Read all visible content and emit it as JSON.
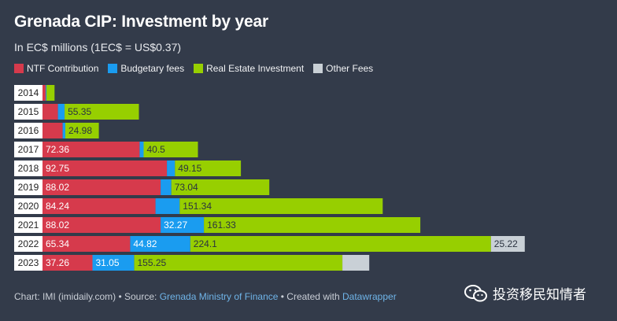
{
  "title": "Grenada CIP: Investment by year",
  "subtitle": "In EC$ millions (1EC$ = US$0.37)",
  "footer": {
    "chart_credit": "Chart: IMI (imidaily.com) • Source: ",
    "source_name": "Grenada Ministry of Finance",
    "created_with": " • Created with ",
    "tool_name": "Datawrapper"
  },
  "watermark": {
    "text": "投资移民知情者",
    "icon": "wechat-icon"
  },
  "colors": {
    "background": "#333b4a",
    "NTF Contribution": "#d63a4c",
    "Budgetary fees": "#1a9cf0",
    "Real Estate Investment": "#97cf00",
    "Other Fees": "#c9d0d6",
    "year_band": "#ffffff"
  },
  "chart_data": {
    "type": "bar",
    "orientation": "horizontal",
    "stacked": true,
    "title": "Grenada CIP: Investment by year",
    "subtitle": "In EC$ millions (1EC$ = US$0.37)",
    "legend_position": "top-left",
    "categories": [
      "2014",
      "2015",
      "2016",
      "2017",
      "2018",
      "2019",
      "2020",
      "2021",
      "2022",
      "2023"
    ],
    "series": [
      {
        "name": "NTF Contribution",
        "values": [
          2.4,
          11.5,
          15.0,
          72.36,
          92.75,
          88.02,
          84.24,
          88.02,
          65.34,
          37.26
        ],
        "labels": [
          null,
          null,
          null,
          "72.36",
          "92.75",
          "88.02",
          "84.24",
          "88.02",
          "65.34",
          "37.26"
        ]
      },
      {
        "name": "Budgetary fees",
        "values": [
          0.6,
          5.0,
          2.0,
          3.0,
          6.0,
          8.0,
          18.0,
          32.27,
          44.82,
          31.05
        ],
        "labels": [
          null,
          null,
          null,
          null,
          null,
          null,
          null,
          "32.27",
          "44.82",
          "31.05"
        ]
      },
      {
        "name": "Real Estate Investment",
        "values": [
          6.0,
          55.35,
          24.98,
          40.5,
          49.15,
          73.04,
          151.34,
          161.33,
          224.1,
          155.25
        ],
        "labels": [
          null,
          "55.35",
          "24.98",
          "40.5",
          "49.15",
          "73.04",
          "151.34",
          "161.33",
          "224.1",
          "155.25"
        ]
      },
      {
        "name": "Other Fees",
        "values": [
          0,
          0,
          0,
          0,
          0,
          0,
          0,
          0,
          25.22,
          20.0
        ],
        "labels": [
          null,
          null,
          null,
          null,
          null,
          null,
          null,
          null,
          "25.22",
          null
        ]
      }
    ],
    "xlim": [
      0,
      420
    ],
    "grid": false
  }
}
